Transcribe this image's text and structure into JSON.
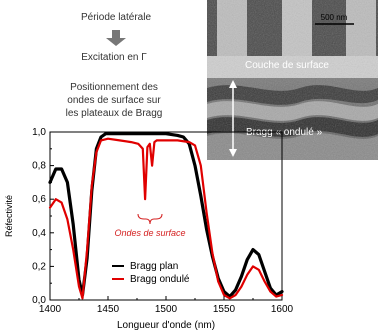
{
  "annotations": {
    "periode": "Période latérale",
    "excitation": "Excitation en Γ",
    "positionnement_1": "Positionnement des",
    "positionnement_2": "ondes de surface sur",
    "positionnement_3": "les plateaux de Bragg",
    "ondes": "Ondes de surface"
  },
  "inset": {
    "scale_bar": "500 nm",
    "layer_label": "Couche de surface",
    "bragg_label": "Bragg « ondulé »"
  },
  "colors": {
    "bragg_plan": "#000000",
    "bragg_ondule": "#e00000",
    "annotation_red": "#d42020"
  },
  "chart_data": {
    "type": "line",
    "title": "",
    "xlabel": "Longueur d'onde (nm)",
    "ylabel": "Réfectivité",
    "xlim": [
      1400,
      1600
    ],
    "ylim": [
      0.0,
      1.0
    ],
    "x_ticks": [
      "1400",
      "1450",
      "1500",
      "1550",
      "1600"
    ],
    "y_ticks": [
      "0,0",
      "0,2",
      "0,4",
      "0,6",
      "0,8",
      "1,0"
    ],
    "legend_position": "bottom-center",
    "series": [
      {
        "name": "Bragg plan",
        "x": [
          1400,
          1405,
          1410,
          1415,
          1420,
          1425,
          1428,
          1432,
          1436,
          1440,
          1444,
          1448,
          1452,
          1460,
          1470,
          1480,
          1490,
          1500,
          1510,
          1515,
          1520,
          1525,
          1530,
          1535,
          1540,
          1545,
          1550,
          1555,
          1560,
          1565,
          1570,
          1575,
          1580,
          1585,
          1590,
          1595,
          1600
        ],
        "y": [
          0.7,
          0.78,
          0.78,
          0.7,
          0.45,
          0.12,
          0.03,
          0.25,
          0.65,
          0.9,
          0.97,
          0.99,
          0.99,
          0.99,
          0.99,
          0.99,
          0.99,
          0.99,
          0.98,
          0.97,
          0.93,
          0.8,
          0.62,
          0.42,
          0.26,
          0.13,
          0.05,
          0.02,
          0.06,
          0.14,
          0.24,
          0.3,
          0.27,
          0.17,
          0.07,
          0.03,
          0.05
        ]
      },
      {
        "name": "Bragg ondulé",
        "x": [
          1400,
          1405,
          1410,
          1415,
          1420,
          1425,
          1428,
          1432,
          1436,
          1440,
          1444,
          1450,
          1460,
          1470,
          1476,
          1480,
          1482,
          1484,
          1486,
          1488,
          1490,
          1492,
          1496,
          1500,
          1510,
          1520,
          1525,
          1530,
          1535,
          1540,
          1545,
          1550,
          1555,
          1560,
          1565,
          1570,
          1575,
          1580,
          1585,
          1590,
          1595,
          1600
        ],
        "y": [
          0.55,
          0.6,
          0.58,
          0.48,
          0.3,
          0.08,
          0.01,
          0.3,
          0.68,
          0.88,
          0.95,
          0.96,
          0.95,
          0.94,
          0.93,
          0.9,
          0.6,
          0.91,
          0.93,
          0.8,
          0.94,
          0.95,
          0.95,
          0.95,
          0.95,
          0.94,
          0.92,
          0.8,
          0.52,
          0.28,
          0.11,
          0.03,
          0.01,
          0.03,
          0.08,
          0.15,
          0.2,
          0.18,
          0.11,
          0.05,
          0.02,
          0.03
        ]
      }
    ]
  }
}
